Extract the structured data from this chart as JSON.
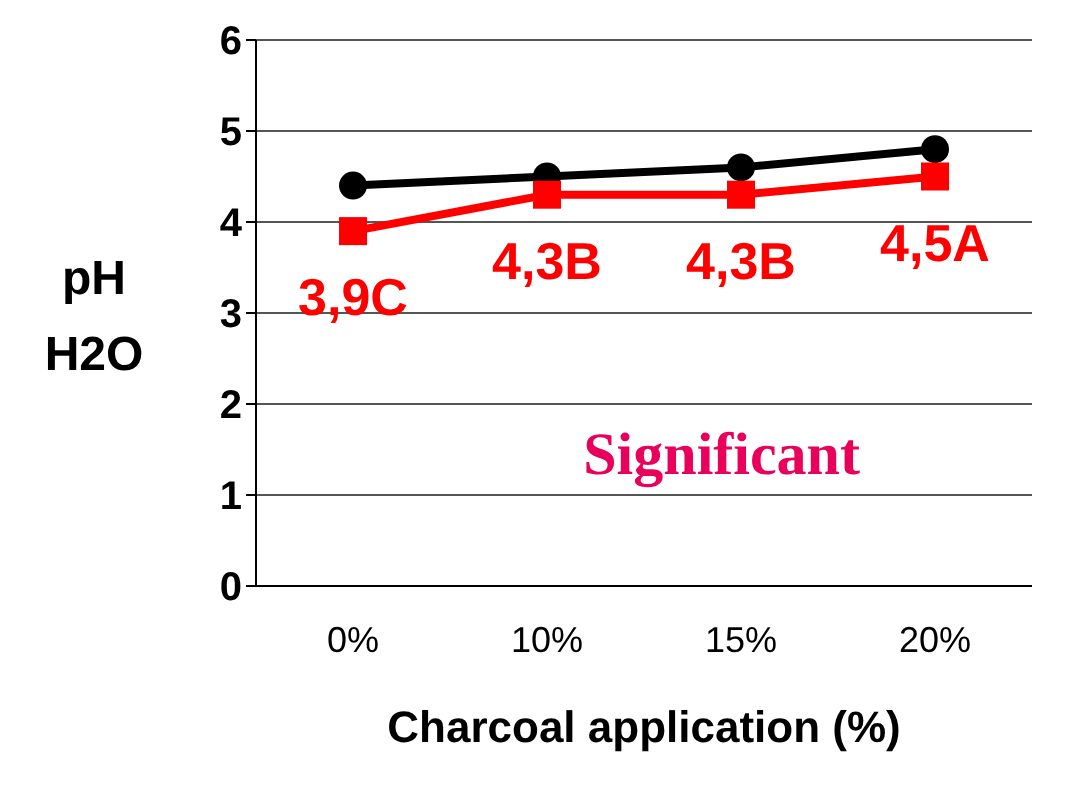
{
  "chart_data": {
    "type": "line",
    "xlabel": "Charcoal application (%)",
    "ylabel": "pH H2O",
    "categories": [
      "0%",
      "10%",
      "15%",
      "20%"
    ],
    "series": [
      {
        "color": "#000000",
        "values": [
          4.4,
          4.5,
          4.6,
          4.8
        ],
        "marker": "circle"
      },
      {
        "color": "#ff0000",
        "values": [
          3.9,
          4.3,
          4.3,
          4.5
        ],
        "marker": "square",
        "value_labels": [
          "3,9C",
          "4,3B",
          "4,3B",
          "4,5A"
        ]
      }
    ],
    "ylim": [
      0,
      6
    ],
    "yticks": [
      0,
      1,
      2,
      3,
      4,
      5,
      6
    ],
    "grid": "y",
    "legend": false,
    "annotations": [
      "Significant"
    ]
  }
}
